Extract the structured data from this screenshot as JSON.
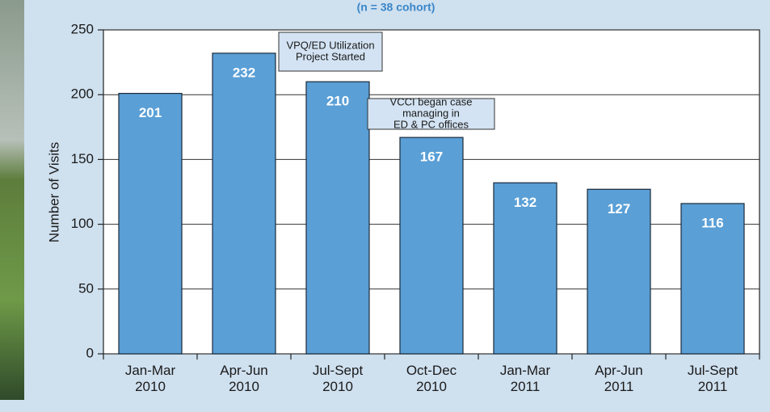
{
  "chart_data": {
    "type": "bar",
    "subtitle": "(n = 38 cohort)",
    "ylabel": "Number of Visits",
    "categories": [
      [
        "Jan-Mar",
        "2010"
      ],
      [
        "Apr-Jun",
        "2010"
      ],
      [
        "Jul-Sept",
        "2010"
      ],
      [
        "Oct-Dec",
        "2010"
      ],
      [
        "Jan-Mar",
        "2011"
      ],
      [
        "Apr-Jun",
        "2011"
      ],
      [
        "Jul-Sept",
        "2011"
      ]
    ],
    "values": [
      201,
      232,
      210,
      167,
      132,
      127,
      116
    ],
    "color": "#5a9fd6",
    "ylim": [
      0,
      250
    ],
    "yticks": [
      0,
      50,
      100,
      150,
      200,
      250
    ],
    "grid": true,
    "annotations": [
      {
        "lines": [
          "VPQ/ED Utilization",
          "Project Started"
        ]
      },
      {
        "lines": [
          "VCCI began case",
          "managing in",
          "ED & PC offices"
        ]
      }
    ]
  }
}
